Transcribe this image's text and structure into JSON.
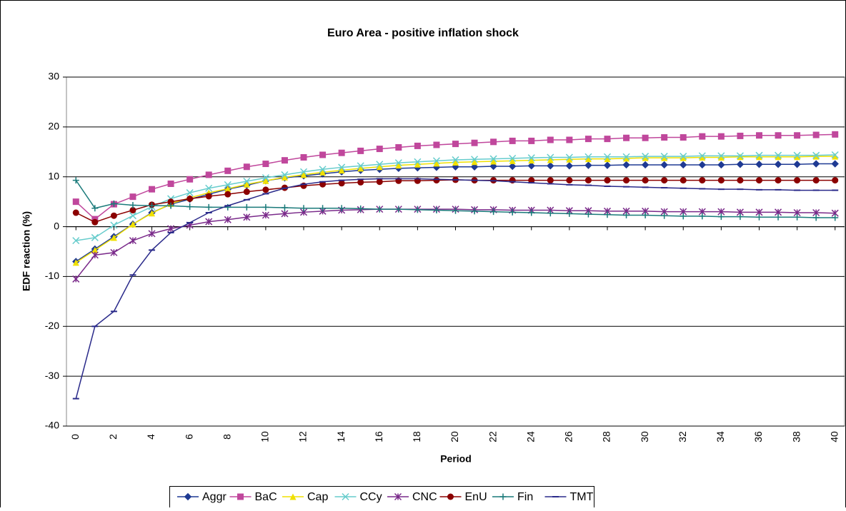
{
  "chart_data": {
    "type": "line",
    "title": "Euro Area - positive inflation shock",
    "x_label": "Period",
    "y_label": "EDF reaction (%)",
    "x": [
      0,
      1,
      2,
      3,
      4,
      5,
      6,
      7,
      8,
      9,
      10,
      11,
      12,
      13,
      14,
      15,
      16,
      17,
      18,
      19,
      20,
      21,
      22,
      23,
      24,
      25,
      26,
      27,
      28,
      29,
      30,
      31,
      32,
      33,
      34,
      35,
      36,
      37,
      38,
      39,
      40
    ],
    "xlim": [
      -0.5,
      40.5
    ],
    "xticks": [
      0,
      2,
      4,
      6,
      8,
      10,
      12,
      14,
      16,
      18,
      20,
      22,
      24,
      26,
      28,
      30,
      32,
      34,
      36,
      38,
      40
    ],
    "ylim": [
      -40,
      30
    ],
    "yticks": [
      -40,
      -30,
      -20,
      -10,
      0,
      10,
      20,
      30
    ],
    "grid": true,
    "legend": "bottom",
    "series": [
      {
        "name": "Aggr",
        "color": "#1f3a93",
        "marker": "diamond",
        "values": [
          -7,
          -4.5,
          -2,
          0.5,
          2.8,
          4.5,
          5.5,
          6.5,
          7.5,
          8.3,
          9.2,
          9.8,
          10.2,
          10.6,
          11,
          11.3,
          11.5,
          11.7,
          11.8,
          11.9,
          12,
          12,
          12.1,
          12.1,
          12.2,
          12.2,
          12.2,
          12.3,
          12.3,
          12.4,
          12.4,
          12.4,
          12.4,
          12.4,
          12.4,
          12.5,
          12.5,
          12.5,
          12.5,
          12.6,
          12.6
        ]
      },
      {
        "name": "BaC",
        "color": "#c0479c",
        "marker": "square",
        "values": [
          5,
          1.5,
          4.5,
          6,
          7.5,
          8.6,
          9.5,
          10.4,
          11.2,
          12,
          12.6,
          13.3,
          13.9,
          14.4,
          14.8,
          15.2,
          15.6,
          15.9,
          16.2,
          16.4,
          16.6,
          16.8,
          17,
          17.2,
          17.2,
          17.4,
          17.4,
          17.6,
          17.6,
          17.8,
          17.8,
          17.9,
          17.9,
          18.1,
          18.1,
          18.2,
          18.3,
          18.3,
          18.3,
          18.4,
          18.5
        ]
      },
      {
        "name": "Cap",
        "color": "#f0e000",
        "marker": "triangle",
        "values": [
          -7.2,
          -4.7,
          -2.2,
          0.5,
          2.7,
          4.6,
          5.8,
          6.8,
          7.6,
          8.5,
          9.2,
          9.9,
          10.4,
          10.9,
          11.3,
          11.7,
          12,
          12.3,
          12.5,
          12.7,
          12.9,
          13,
          13.1,
          13.2,
          13.3,
          13.4,
          13.5,
          13.6,
          13.6,
          13.7,
          13.8,
          13.8,
          13.8,
          13.9,
          13.9,
          14,
          14,
          14,
          14,
          14.1,
          14.1
        ]
      },
      {
        "name": "CCy",
        "color": "#66cccc",
        "marker": "x",
        "values": [
          -2.8,
          -2.2,
          0.3,
          2.2,
          4,
          5.6,
          6.8,
          7.7,
          8.4,
          9.1,
          9.8,
          10.4,
          11,
          11.5,
          11.9,
          12.2,
          12.5,
          12.8,
          13,
          13.2,
          13.4,
          13.5,
          13.6,
          13.7,
          13.8,
          13.9,
          13.9,
          14,
          14,
          14,
          14.1,
          14.1,
          14.1,
          14.2,
          14.2,
          14.2,
          14.3,
          14.3,
          14.3,
          14.3,
          14.4
        ]
      },
      {
        "name": "CNC",
        "color": "#7a2a8a",
        "marker": "asterisk",
        "values": [
          -10.5,
          -5.7,
          -5.2,
          -2.8,
          -1.4,
          -0.4,
          0.3,
          1,
          1.4,
          1.9,
          2.3,
          2.6,
          2.9,
          3.1,
          3.3,
          3.4,
          3.5,
          3.5,
          3.5,
          3.5,
          3.5,
          3.4,
          3.4,
          3.3,
          3.3,
          3.3,
          3.2,
          3.2,
          3.1,
          3.1,
          3.1,
          3,
          3,
          3,
          3,
          2.9,
          2.9,
          2.9,
          2.8,
          2.8,
          2.7
        ]
      },
      {
        "name": "EnU",
        "color": "#8b0000",
        "marker": "circle",
        "values": [
          2.8,
          0.9,
          2.2,
          3.3,
          4.4,
          5,
          5.6,
          6.1,
          6.5,
          7,
          7.4,
          7.8,
          8.2,
          8.5,
          8.7,
          8.9,
          9,
          9.2,
          9.2,
          9.3,
          9.4,
          9.3,
          9.3,
          9.3,
          9.3,
          9.3,
          9.3,
          9.3,
          9.3,
          9.3,
          9.3,
          9.3,
          9.3,
          9.3,
          9.3,
          9.3,
          9.3,
          9.3,
          9.3,
          9.3,
          9.3
        ]
      },
      {
        "name": "Fin",
        "color": "#1a7a7a",
        "marker": "plus",
        "values": [
          9.3,
          3.7,
          4.6,
          4.3,
          4.2,
          4.2,
          4,
          3.9,
          3.9,
          3.9,
          3.9,
          3.8,
          3.7,
          3.7,
          3.7,
          3.6,
          3.5,
          3.5,
          3.4,
          3.3,
          3.2,
          3.1,
          3,
          2.9,
          2.8,
          2.7,
          2.6,
          2.5,
          2.4,
          2.3,
          2.3,
          2.2,
          2.1,
          2.1,
          2,
          2,
          1.9,
          1.9,
          1.9,
          1.8,
          1.8
        ]
      },
      {
        "name": "TMT",
        "color": "#2a2a8a",
        "marker": "dash",
        "values": [
          -34.5,
          -20,
          -17,
          -9.7,
          -4.7,
          -1.2,
          0.8,
          2.8,
          4.2,
          5.4,
          6.6,
          7.7,
          8.5,
          9,
          9.3,
          9.5,
          9.6,
          9.6,
          9.6,
          9.5,
          9.4,
          9.3,
          9.2,
          9,
          8.8,
          8.6,
          8.4,
          8.3,
          8.1,
          8,
          7.9,
          7.8,
          7.7,
          7.6,
          7.5,
          7.5,
          7.4,
          7.4,
          7.3,
          7.3,
          7.3
        ]
      }
    ]
  }
}
